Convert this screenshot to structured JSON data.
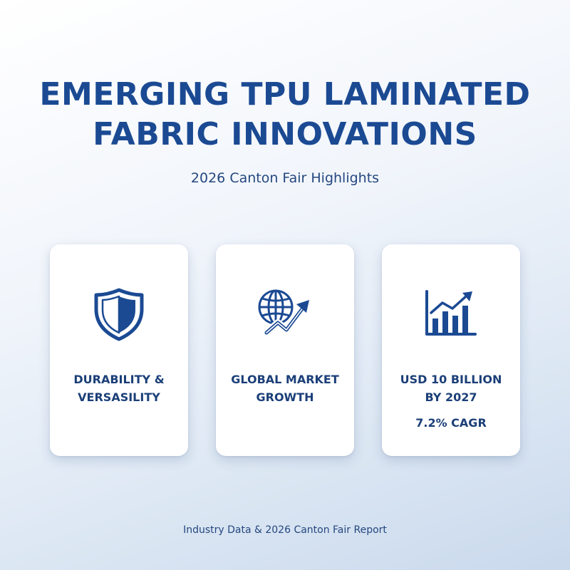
{
  "header": {
    "title_line1": "EMERGING TPU LAMINATED",
    "title_line2": "FABRIC INNOVATIONS",
    "subtitle": "2026 Canton Fair Highlights"
  },
  "cards": [
    {
      "icon": "shield-icon",
      "label_line1": "DURABILITY &",
      "label_line2": "VERSASILITY"
    },
    {
      "icon": "globe-growth-icon",
      "label_line1": "GLOBAL MARKET",
      "label_line2": "GROWTH"
    },
    {
      "icon": "bar-chart-growth-icon",
      "label_line1": "USD 10 BILLION",
      "label_line2": "BY 2027",
      "sub": "7.2% CAGR"
    }
  ],
  "footer": {
    "source": "Industry Data & 2026 Canton Fair Report"
  },
  "colors": {
    "primary": "#1b4a93",
    "text_dark": "#1b3f78",
    "card_bg": "#ffffff"
  }
}
